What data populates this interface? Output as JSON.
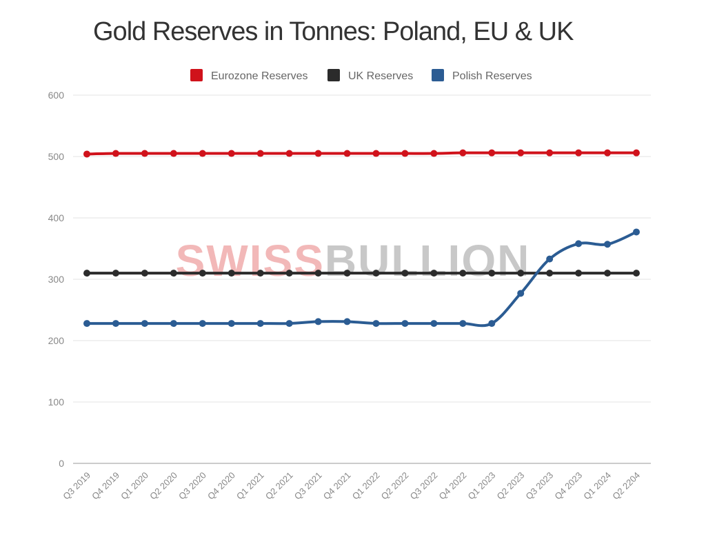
{
  "chart_data": {
    "type": "line",
    "title": "Gold Reserves in Tonnes: Poland, EU & UK",
    "watermark": {
      "part1": "SWISS",
      "part2": "BULLION",
      "color1": "#f2b8b8",
      "color2": "#c8c8c8"
    },
    "categories": [
      "Q3 2019",
      "Q4 2019",
      "Q1 2020",
      "Q2 2020",
      "Q3 2020",
      "Q4 2020",
      "Q1 2021",
      "Q2 2021",
      "Q3 2021",
      "Q4 2021",
      "Q1 2022",
      "Q2 2022",
      "Q3 2022",
      "Q4 2022",
      "Q1 2023",
      "Q2 2023",
      "Q3 2023",
      "Q4 2023",
      "Q1 2024",
      "Q2 2204"
    ],
    "ylim": [
      0,
      600
    ],
    "yticks": [
      0,
      100,
      200,
      300,
      400,
      500,
      600
    ],
    "grid": true,
    "legend_position": "top-center",
    "series": [
      {
        "name": "Eurozone Reserves",
        "color": "#d0121b",
        "values": [
          504,
          505,
          505,
          505,
          505,
          505,
          505,
          505,
          505,
          505,
          505,
          505,
          505,
          506,
          506,
          506,
          506,
          506,
          506,
          506
        ]
      },
      {
        "name": "UK Reserves",
        "color": "#2b2b2b",
        "values": [
          310,
          310,
          310,
          310,
          310,
          310,
          310,
          310,
          310,
          310,
          310,
          310,
          310,
          310,
          310,
          310,
          310,
          310,
          310,
          310
        ]
      },
      {
        "name": "Polish Reserves",
        "color": "#2b5c93",
        "values": [
          228,
          228,
          228,
          228,
          228,
          228,
          228,
          228,
          231,
          231,
          228,
          228,
          228,
          228,
          228,
          277,
          333,
          358,
          357,
          377
        ]
      }
    ]
  }
}
